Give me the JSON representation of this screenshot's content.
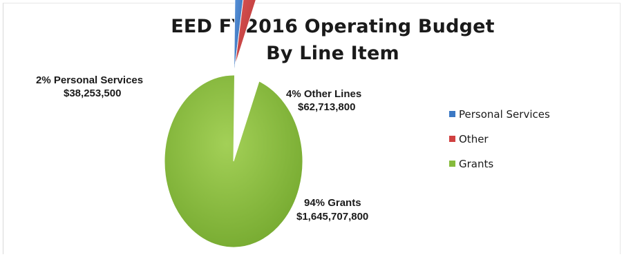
{
  "chart_data": {
    "type": "pie",
    "title_line1": "EED FY2016 Operating Budget",
    "title_line2": "By Line Item",
    "slices": [
      {
        "name": "Personal Services",
        "percent_label": "2% Personal Services",
        "value_label": "$38,253,500",
        "value": 38253500,
        "color": "#3b78c4"
      },
      {
        "name": "Other",
        "percent_label": "4% Other Lines",
        "value_label": "$62,713,800",
        "value": 62713800,
        "color": "#d04040"
      },
      {
        "name": "Grants",
        "percent_label": "94% Grants",
        "value_label": "$1,645,707,800",
        "value": 1645707800,
        "color": "#86bb3c"
      }
    ],
    "legend": {
      "placement": "right",
      "items": [
        "Personal Services",
        "Other",
        "Grants"
      ]
    }
  }
}
